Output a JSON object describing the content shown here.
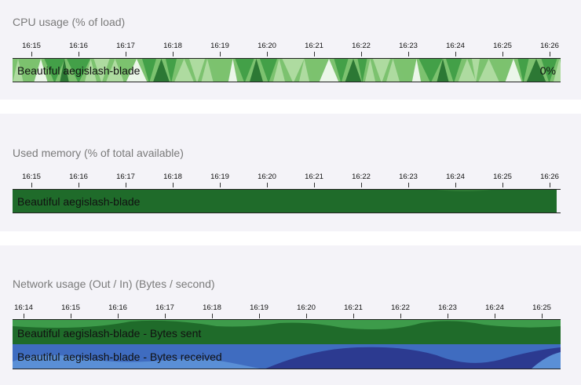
{
  "cpu": {
    "title": "CPU usage (% of load)",
    "ticks": [
      "16:15",
      "16:16",
      "16:17",
      "16:18",
      "16:19",
      "16:20",
      "16:21",
      "16:22",
      "16:23",
      "16:24",
      "16:25",
      "16:26"
    ],
    "row_label": "Beautiful aegislash-blade",
    "value": "0%"
  },
  "memory": {
    "title": "Used memory (% of total available)",
    "ticks": [
      "16:15",
      "16:16",
      "16:17",
      "16:18",
      "16:19",
      "16:20",
      "16:21",
      "16:22",
      "16:23",
      "16:24",
      "16:25",
      "16:26"
    ],
    "row_label": "Beautiful aegislash-blade"
  },
  "network": {
    "title": "Network usage (Out / In) (Bytes / second)",
    "ticks": [
      "16:14",
      "16:15",
      "16:16",
      "16:17",
      "16:18",
      "16:19",
      "16:20",
      "16:21",
      "16:22",
      "16:23",
      "16:24",
      "16:25"
    ],
    "sent_label": "Beautiful aegislash-blade - Bytes sent",
    "received_label": "Beautiful aegislash-blade - Bytes received"
  },
  "colors": {
    "cpu_light": "#b7dfa9",
    "cpu_mid": "#7cc26f",
    "cpu_dark": "#3a9a42",
    "cpu_darkest": "#1f6b2a",
    "memory_fill": "#1f6b2a",
    "net_sent_top": "#3d9b4a",
    "net_sent_bottom": "#1f6b2a",
    "net_recv_light": "#5a8fd6",
    "net_recv_mid": "#3f6cc0",
    "net_recv_dark": "#2c3a90"
  }
}
